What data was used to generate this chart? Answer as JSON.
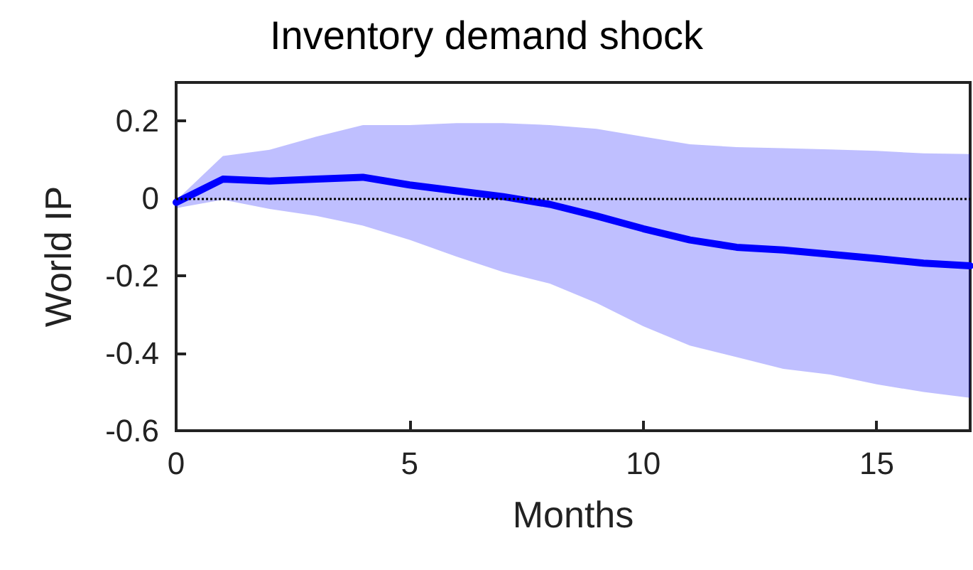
{
  "chart_data": {
    "type": "line",
    "title": "Inventory demand shock",
    "xlabel": "Months",
    "ylabel": "World IP",
    "x": [
      0,
      1,
      2,
      3,
      4,
      5,
      6,
      7,
      8,
      9,
      10,
      11,
      12,
      13,
      14,
      15,
      16,
      17
    ],
    "series": [
      {
        "color": "#0000ff",
        "values": [
          -0.01,
          0.05,
          0.045,
          0.05,
          0.055,
          0.035,
          0.02,
          0.005,
          -0.015,
          -0.045,
          -0.078,
          -0.107,
          -0.126,
          -0.133,
          -0.144,
          -0.155,
          -0.167,
          -0.174
        ],
        "lower": [
          -0.025,
          -0.003,
          -0.027,
          -0.045,
          -0.07,
          -0.107,
          -0.15,
          -0.19,
          -0.22,
          -0.27,
          -0.33,
          -0.38,
          -0.41,
          -0.44,
          -0.455,
          -0.48,
          -0.5,
          -0.515
        ],
        "upper": [
          -0.005,
          0.11,
          0.126,
          0.16,
          0.19,
          0.19,
          0.195,
          0.195,
          0.19,
          0.18,
          0.16,
          0.14,
          0.133,
          0.13,
          0.127,
          0.123,
          0.117,
          0.115
        ]
      }
    ],
    "xlim": [
      0,
      17
    ],
    "xticks": [
      0,
      5,
      10,
      15
    ],
    "ylim": [
      -0.6,
      0.3
    ],
    "yticks": [
      -0.6,
      -0.4,
      -0.2,
      0,
      0.2
    ],
    "ref_lines": [
      {
        "axis": "y",
        "value": 0,
        "color": "#000000",
        "line_style": "dotted"
      }
    ],
    "grid": false,
    "marker": "none",
    "line_style": "solid"
  }
}
